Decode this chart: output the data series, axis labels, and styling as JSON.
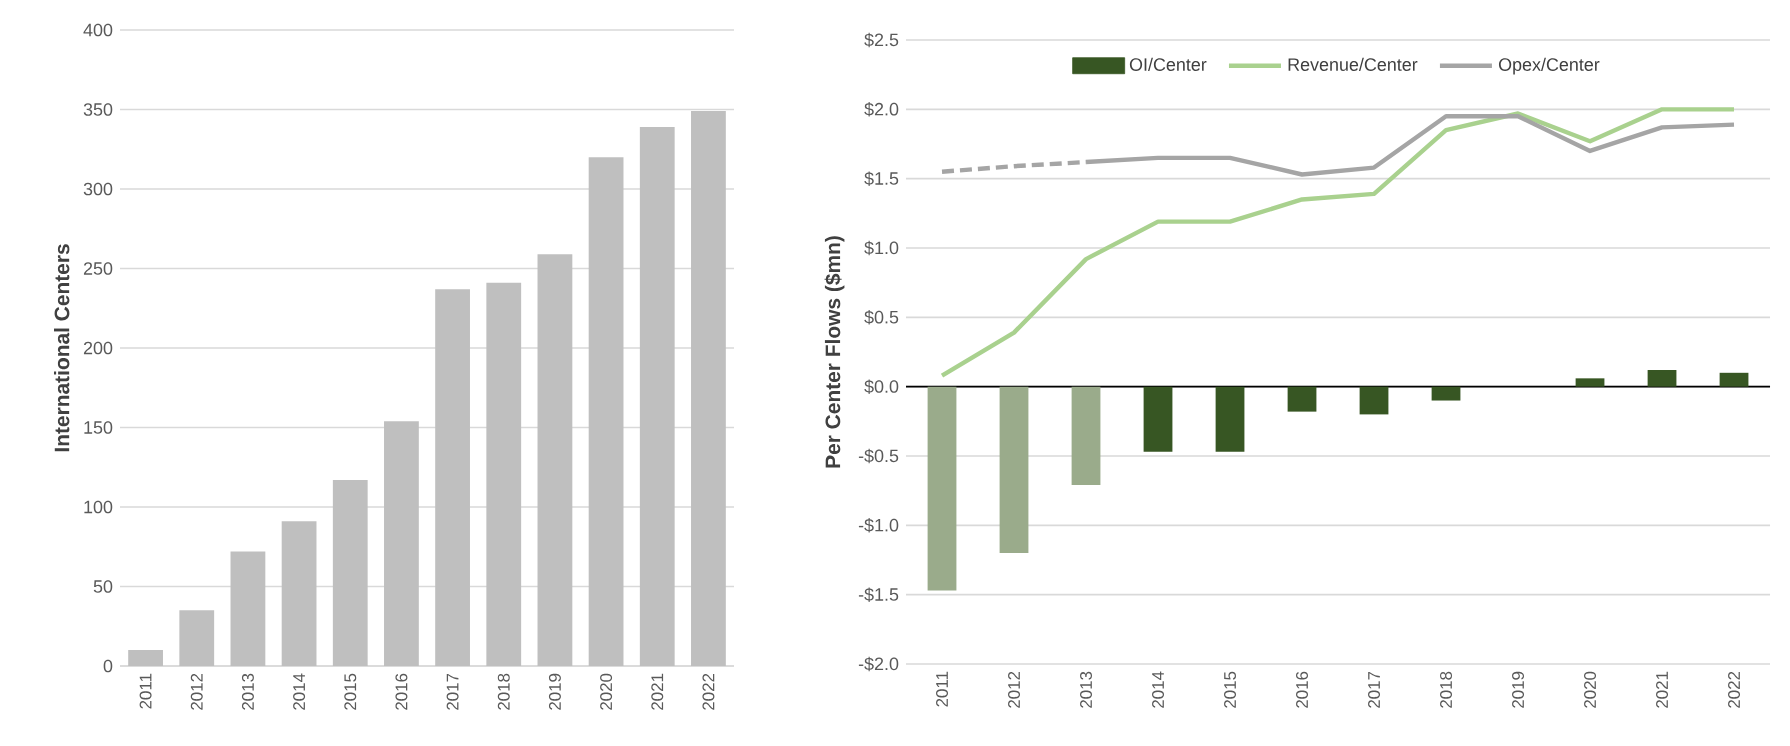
{
  "chart_data": [
    {
      "type": "bar",
      "ylabel": "International Centers",
      "categories": [
        "2011",
        "2012",
        "2013",
        "2014",
        "2015",
        "2016",
        "2017",
        "2018",
        "2019",
        "2020",
        "2021",
        "2022"
      ],
      "values": [
        10,
        35,
        72,
        91,
        117,
        154,
        237,
        241,
        259,
        320,
        339,
        349
      ],
      "color": "#bfbfbf",
      "ylim": [
        0,
        400
      ],
      "yticks": [
        0,
        50,
        100,
        150,
        200,
        250,
        300,
        350,
        400
      ],
      "grid": "y"
    },
    {
      "type": "bar",
      "ylabel": "Per Center Flows ($mn)",
      "categories": [
        "2011",
        "2012",
        "2013",
        "2014",
        "2015",
        "2016",
        "2017",
        "2018",
        "2019",
        "2020",
        "2021",
        "2022"
      ],
      "series": [
        {
          "name": "OI/Center",
          "type": "bar",
          "color": "#375623",
          "colors": [
            "#9aab8b",
            "#9aab8b",
            "#9aab8b",
            "#375623",
            "#375623",
            "#375623",
            "#375623",
            "#375623",
            "#375623",
            "#375623",
            "#375623",
            "#375623"
          ],
          "values": [
            -1.47,
            -1.2,
            -0.71,
            -0.47,
            -0.47,
            -0.18,
            -0.2,
            -0.1,
            null,
            0.06,
            0.12,
            0.1
          ]
        },
        {
          "name": "Revenue/Center",
          "type": "line",
          "color": "#a9d18e",
          "line_style": "solid",
          "values": [
            0.08,
            0.39,
            0.92,
            1.19,
            1.19,
            1.35,
            1.39,
            1.85,
            1.97,
            1.77,
            2.0,
            2.0
          ]
        },
        {
          "name": "Opex/Center",
          "type": "line",
          "color": "#a5a5a5",
          "line_style": "solid",
          "values": [
            null,
            null,
            1.62,
            1.65,
            1.65,
            1.53,
            1.58,
            1.95,
            1.95,
            1.7,
            1.87,
            1.89
          ]
        },
        {
          "type": "line",
          "color": "#a5a5a5",
          "line_style": "dashed",
          "values": [
            1.55,
            1.59,
            1.62,
            null,
            null,
            null,
            null,
            null,
            null,
            null,
            null,
            null
          ]
        }
      ],
      "ylim": [
        -2.0,
        2.5
      ],
      "yticks": [
        {
          "value": -2.0,
          "label": "-$2.0"
        },
        {
          "value": -1.5,
          "label": "-$1.5"
        },
        {
          "value": -1.0,
          "label": "-$1.0"
        },
        {
          "value": -0.5,
          "label": "-$0.5"
        },
        {
          "value": 0.0,
          "label": "$0.0"
        },
        {
          "value": 0.5,
          "label": "$0.5"
        },
        {
          "value": 1.0,
          "label": "$1.0"
        },
        {
          "value": 1.5,
          "label": "$1.5"
        },
        {
          "value": 2.0,
          "label": "$2.0"
        },
        {
          "value": 2.5,
          "label": "$2.5"
        }
      ],
      "grid": "y",
      "legend": "top"
    }
  ]
}
